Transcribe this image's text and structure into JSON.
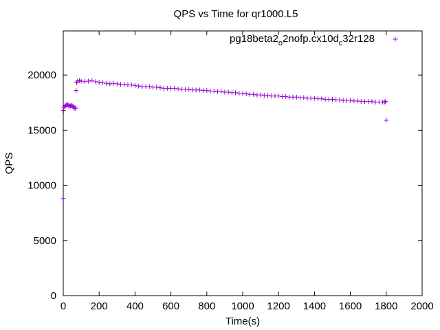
{
  "chart_data": {
    "type": "scatter",
    "title": "QPS vs Time for qr1000.L5",
    "xlabel": "Time(s)",
    "ylabel": "QPS",
    "xlim": [
      0,
      2000
    ],
    "ylim": [
      0,
      24000
    ],
    "xticks": [
      0,
      200,
      400,
      600,
      800,
      1000,
      1200,
      1400,
      1600,
      1800,
      2000
    ],
    "yticks": [
      0,
      5000,
      10000,
      15000,
      20000
    ],
    "grid": false,
    "legend_position": "top-right",
    "marker": "+",
    "series": [
      {
        "name": "pg18beta2_o2nofp.cx10d_c32r128",
        "name_parts": [
          "pg18beta2",
          "o",
          "2nofp.cx10d",
          "c",
          "32r128"
        ],
        "color": "#9400d3",
        "x": [
          1,
          2,
          5,
          10,
          15,
          20,
          25,
          30,
          35,
          40,
          45,
          50,
          55,
          60,
          65,
          70,
          72,
          75,
          80,
          90,
          100,
          120,
          140,
          160,
          180,
          200,
          220,
          240,
          260,
          280,
          300,
          320,
          340,
          360,
          380,
          400,
          420,
          440,
          460,
          480,
          500,
          520,
          540,
          560,
          580,
          600,
          620,
          640,
          660,
          680,
          700,
          720,
          740,
          760,
          780,
          800,
          820,
          840,
          860,
          880,
          900,
          920,
          940,
          960,
          980,
          1000,
          1020,
          1040,
          1060,
          1080,
          1100,
          1120,
          1140,
          1160,
          1180,
          1200,
          1220,
          1240,
          1260,
          1280,
          1300,
          1320,
          1340,
          1360,
          1380,
          1400,
          1420,
          1440,
          1460,
          1480,
          1500,
          1520,
          1540,
          1560,
          1580,
          1600,
          1620,
          1640,
          1660,
          1680,
          1700,
          1720,
          1740,
          1760,
          1780,
          1790,
          1795,
          1800
        ],
        "y": [
          8800,
          16800,
          17100,
          17200,
          17250,
          17300,
          17300,
          17250,
          17200,
          17200,
          17250,
          17200,
          17100,
          17100,
          17000,
          17000,
          18600,
          19300,
          19450,
          19500,
          19450,
          19400,
          19450,
          19500,
          19400,
          19350,
          19300,
          19250,
          19200,
          19250,
          19200,
          19150,
          19150,
          19100,
          19100,
          19050,
          19000,
          18950,
          18950,
          18950,
          18900,
          18900,
          18850,
          18800,
          18800,
          18800,
          18800,
          18750,
          18700,
          18700,
          18700,
          18650,
          18650,
          18650,
          18600,
          18600,
          18550,
          18550,
          18500,
          18500,
          18450,
          18450,
          18400,
          18400,
          18350,
          18350,
          18300,
          18250,
          18250,
          18200,
          18200,
          18150,
          18150,
          18100,
          18100,
          18100,
          18050,
          18050,
          18000,
          18000,
          18000,
          17950,
          17950,
          17900,
          17900,
          17900,
          17850,
          17850,
          17800,
          17800,
          17800,
          17750,
          17750,
          17700,
          17700,
          17700,
          17650,
          17650,
          17600,
          17600,
          17600,
          17600,
          17550,
          17550,
          17550,
          17550,
          17600,
          15900
        ]
      }
    ]
  }
}
